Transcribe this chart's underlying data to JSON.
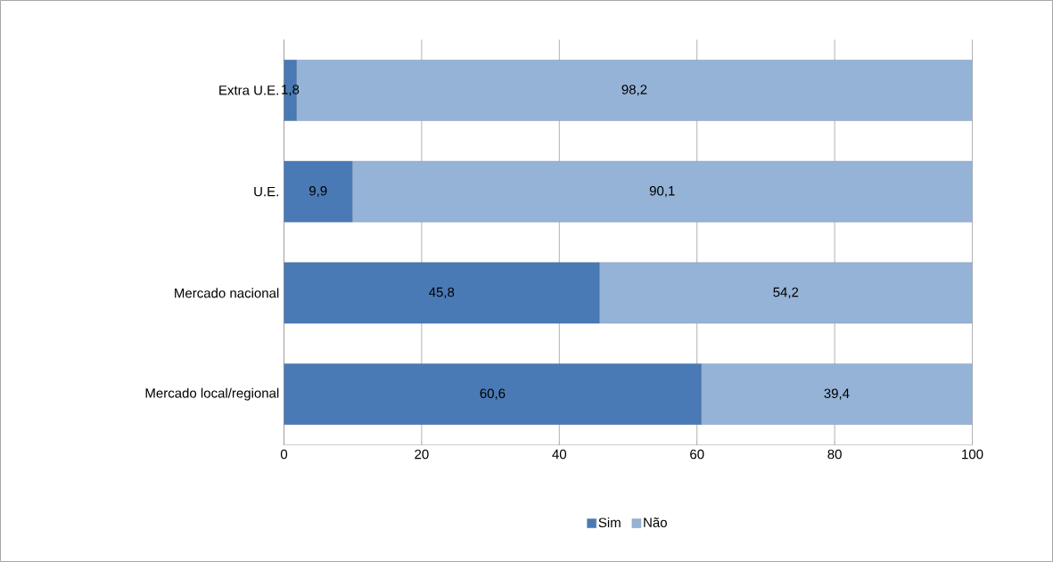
{
  "chart_data": {
    "type": "bar",
    "orientation": "horizontal",
    "stacked": true,
    "categories": [
      "Extra U.E.",
      "U.E.",
      "Mercado nacional",
      "Mercado local/regional"
    ],
    "series": [
      {
        "name": "Sim",
        "color": "#4a7ab5",
        "values": [
          1.8,
          9.9,
          45.8,
          60.6
        ],
        "value_labels": [
          "1,8",
          "9,9",
          "45,8",
          "60,6"
        ]
      },
      {
        "name": "Não",
        "color": "#95b3d7",
        "values": [
          98.2,
          90.1,
          54.2,
          39.4
        ],
        "value_labels": [
          "98,2",
          "90,1",
          "54,2",
          "39,4"
        ]
      }
    ],
    "xlim": [
      0,
      100
    ],
    "xticks": [
      0,
      20,
      40,
      60,
      80,
      100
    ],
    "grid": "x",
    "legend": "bottom"
  }
}
